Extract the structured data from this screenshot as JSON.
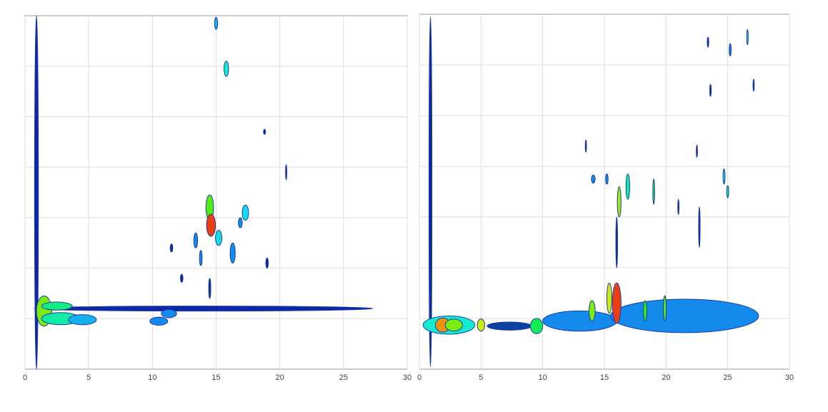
{
  "chart_data": [
    {
      "type": "contour",
      "xlim": [
        0,
        30
      ],
      "xticks": [
        0,
        5,
        10,
        15,
        20,
        25,
        30
      ],
      "ylim": [
        0,
        7
      ],
      "yticks": [
        1,
        2,
        3,
        4,
        5,
        6
      ],
      "grid": true,
      "blobs": [
        {
          "x": 0.9,
          "y": 3.5,
          "w": 0.15,
          "h": 3.5,
          "level": 0
        },
        {
          "x": 14,
          "y": 1.2,
          "w": 13.3,
          "h": 0.05,
          "level": 0
        },
        {
          "x": 1.5,
          "y": 1.15,
          "w": 0.6,
          "h": 0.3,
          "level": 0.6
        },
        {
          "x": 2.8,
          "y": 1.0,
          "w": 1.5,
          "h": 0.12,
          "level": 0.3
        },
        {
          "x": 4.5,
          "y": 0.98,
          "w": 1.1,
          "h": 0.1,
          "level": 0.15
        },
        {
          "x": 2.5,
          "y": 1.25,
          "w": 1.2,
          "h": 0.08,
          "level": 0.35
        },
        {
          "x": 10.5,
          "y": 0.95,
          "w": 0.7,
          "h": 0.08,
          "level": 0.1
        },
        {
          "x": 11.3,
          "y": 1.1,
          "w": 0.6,
          "h": 0.08,
          "level": 0.1
        },
        {
          "x": 14.5,
          "y": 3.2,
          "w": 0.3,
          "h": 0.25,
          "level": 0.55
        },
        {
          "x": 14.6,
          "y": 2.85,
          "w": 0.35,
          "h": 0.22,
          "level": 0.95
        },
        {
          "x": 15.2,
          "y": 2.6,
          "w": 0.25,
          "h": 0.15,
          "level": 0.2
        },
        {
          "x": 17.3,
          "y": 3.1,
          "w": 0.25,
          "h": 0.15,
          "level": 0.2
        },
        {
          "x": 16.3,
          "y": 2.3,
          "w": 0.2,
          "h": 0.2,
          "level": 0.1
        },
        {
          "x": 13.4,
          "y": 2.55,
          "w": 0.15,
          "h": 0.15,
          "level": 0.1
        },
        {
          "x": 13.8,
          "y": 2.2,
          "w": 0.1,
          "h": 0.15,
          "level": 0.1
        },
        {
          "x": 15.8,
          "y": 5.95,
          "w": 0.18,
          "h": 0.15,
          "level": 0.25
        },
        {
          "x": 15,
          "y": 6.85,
          "w": 0.12,
          "h": 0.12,
          "level": 0.15
        },
        {
          "x": 18.8,
          "y": 4.7,
          "w": 0.08,
          "h": 0.05,
          "level": 0
        },
        {
          "x": 19.0,
          "y": 2.1,
          "w": 0.1,
          "h": 0.1,
          "level": 0
        },
        {
          "x": 14.5,
          "y": 1.6,
          "w": 0.08,
          "h": 0.2,
          "level": 0
        },
        {
          "x": 16.9,
          "y": 2.9,
          "w": 0.15,
          "h": 0.1,
          "level": 0.1
        },
        {
          "x": 12.3,
          "y": 1.8,
          "w": 0.1,
          "h": 0.08,
          "level": 0
        },
        {
          "x": 11.5,
          "y": 2.4,
          "w": 0.1,
          "h": 0.08,
          "level": 0
        },
        {
          "x": 20.5,
          "y": 3.9,
          "w": 0.05,
          "h": 0.15,
          "level": 0
        }
      ]
    },
    {
      "type": "contour",
      "xlim": [
        0,
        30
      ],
      "xticks": [
        0,
        5,
        10,
        15,
        20,
        25,
        30
      ],
      "ylim": [
        0,
        7
      ],
      "yticks": [
        1,
        2,
        3,
        4,
        5,
        6
      ],
      "grid": true,
      "blobs": [
        {
          "x": 0.9,
          "y": 3.5,
          "w": 0.12,
          "h": 3.45,
          "level": 0
        },
        {
          "x": 2.4,
          "y": 0.87,
          "w": 2.1,
          "h": 0.18,
          "level": 0.25
        },
        {
          "x": 1.9,
          "y": 0.87,
          "w": 0.6,
          "h": 0.14,
          "level": 0.85
        },
        {
          "x": 2.8,
          "y": 0.87,
          "w": 0.7,
          "h": 0.12,
          "level": 0.6
        },
        {
          "x": 5,
          "y": 0.87,
          "w": 0.3,
          "h": 0.12,
          "level": 0.7
        },
        {
          "x": 7.3,
          "y": 0.85,
          "w": 1.8,
          "h": 0.08,
          "level": 0.05
        },
        {
          "x": 9.5,
          "y": 0.85,
          "w": 0.5,
          "h": 0.15,
          "level": 0.4
        },
        {
          "x": 13,
          "y": 0.95,
          "w": 3,
          "h": 0.2,
          "level": 0.1
        },
        {
          "x": 21.5,
          "y": 1.05,
          "w": 6,
          "h": 0.33,
          "level": 0.1
        },
        {
          "x": 16,
          "y": 1.3,
          "w": 0.35,
          "h": 0.4,
          "level": 0.95
        },
        {
          "x": 15.4,
          "y": 1.4,
          "w": 0.2,
          "h": 0.3,
          "level": 0.7
        },
        {
          "x": 14,
          "y": 1.15,
          "w": 0.25,
          "h": 0.2,
          "level": 0.6
        },
        {
          "x": 18.3,
          "y": 1.15,
          "w": 0.15,
          "h": 0.2,
          "level": 0.5
        },
        {
          "x": 19.9,
          "y": 1.2,
          "w": 0.12,
          "h": 0.25,
          "level": 0.55
        },
        {
          "x": 16.2,
          "y": 3.3,
          "w": 0.15,
          "h": 0.3,
          "level": 0.65
        },
        {
          "x": 16.0,
          "y": 2.5,
          "w": 0.07,
          "h": 0.5,
          "level": 0
        },
        {
          "x": 16.9,
          "y": 3.6,
          "w": 0.15,
          "h": 0.25,
          "level": 0.3
        },
        {
          "x": 14.1,
          "y": 3.75,
          "w": 0.15,
          "h": 0.08,
          "level": 0.1
        },
        {
          "x": 15.2,
          "y": 3.75,
          "w": 0.1,
          "h": 0.1,
          "level": 0.1
        },
        {
          "x": 19,
          "y": 3.5,
          "w": 0.07,
          "h": 0.25,
          "level": 0.4
        },
        {
          "x": 21,
          "y": 3.2,
          "w": 0.05,
          "h": 0.15,
          "level": 0
        },
        {
          "x": 22.7,
          "y": 2.8,
          "w": 0.06,
          "h": 0.4,
          "level": 0
        },
        {
          "x": 24.7,
          "y": 3.8,
          "w": 0.08,
          "h": 0.15,
          "level": 0.2
        },
        {
          "x": 25,
          "y": 3.5,
          "w": 0.08,
          "h": 0.12,
          "level": 0.3
        },
        {
          "x": 26.6,
          "y": 6.55,
          "w": 0.06,
          "h": 0.15,
          "level": 0.2
        },
        {
          "x": 25.2,
          "y": 6.3,
          "w": 0.08,
          "h": 0.12,
          "level": 0.1
        },
        {
          "x": 23.4,
          "y": 6.45,
          "w": 0.06,
          "h": 0.1,
          "level": 0
        },
        {
          "x": 27.1,
          "y": 5.6,
          "w": 0.05,
          "h": 0.12,
          "level": 0
        },
        {
          "x": 23.6,
          "y": 5.5,
          "w": 0.06,
          "h": 0.12,
          "level": 0
        },
        {
          "x": 13.5,
          "y": 4.4,
          "w": 0.05,
          "h": 0.12,
          "level": 0
        },
        {
          "x": 22.5,
          "y": 4.3,
          "w": 0.05,
          "h": 0.12,
          "level": 0
        }
      ]
    }
  ]
}
